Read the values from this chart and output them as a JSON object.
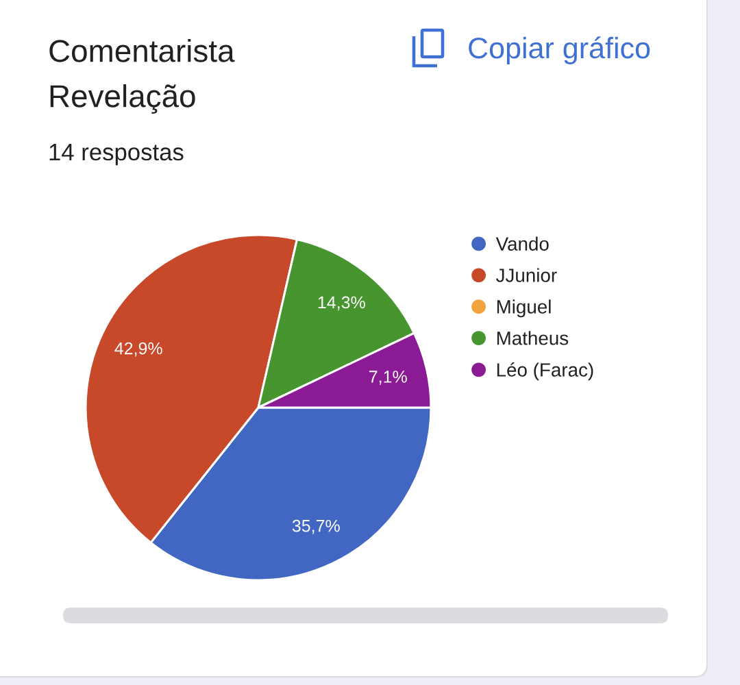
{
  "chart_data": {
    "type": "pie",
    "title": "Comentarista Revelação",
    "subtitle": "14 respostas",
    "annotations": [
      "Copiar gráfico"
    ],
    "categories": [
      "Vando",
      "JJunior",
      "Miguel",
      "Matheus",
      "Léo (Farac)"
    ],
    "values": [
      35.7,
      42.9,
      0,
      14.3,
      7.1
    ],
    "colors": [
      "#4267c3",
      "#c8482a",
      "#f2a33e",
      "#46952f",
      "#8b1b94"
    ],
    "value_labels": [
      "35,7%",
      "42,9%",
      null,
      "14,3%",
      "7,1%"
    ],
    "legend": "right"
  }
}
